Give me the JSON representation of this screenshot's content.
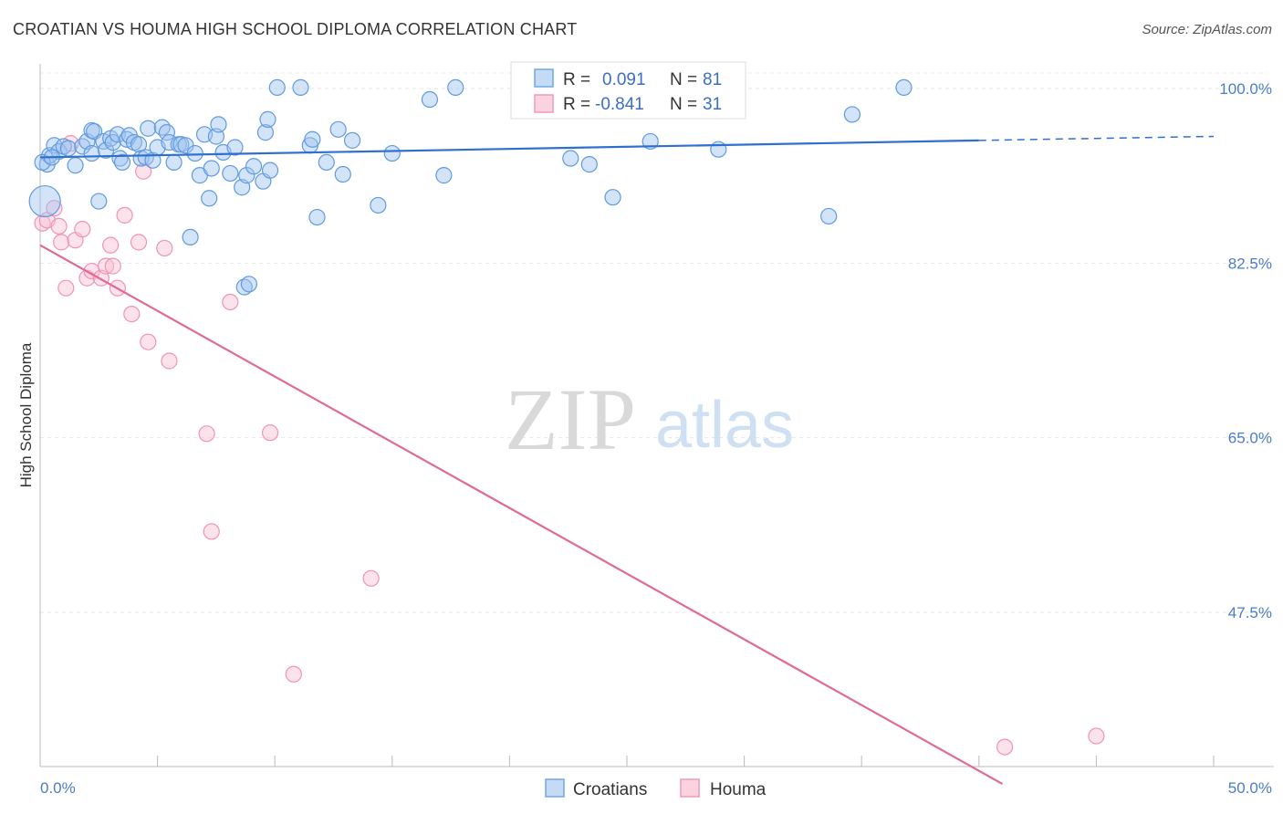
{
  "title": "CROATIAN VS HOUMA HIGH SCHOOL DIPLOMA CORRELATION CHART",
  "source": "Source: ZipAtlas.com",
  "watermark": {
    "zip": "ZIP",
    "atlas": "atlas"
  },
  "colors": {
    "croatians": "#6fa8e6",
    "houma": "#f09ab8",
    "croatians_line": "#2f6fcf",
    "houma_line": "#e06a97"
  },
  "legend": {
    "croatians": {
      "r_label": "R =",
      "r_value": "0.091",
      "n_label": "N =",
      "n_value": "81"
    },
    "houma": {
      "r_label": "R =",
      "r_value": "-0.841",
      "n_label": "N =",
      "n_value": "31"
    }
  },
  "bottom_legend": [
    "Croatians",
    "Houma"
  ],
  "chart_data": {
    "type": "scatter",
    "title": "CROATIAN VS HOUMA HIGH SCHOOL DIPLOMA CORRELATION CHART",
    "xlabel": "",
    "ylabel": "High School Diploma",
    "xlim": [
      0,
      50
    ],
    "ylim": [
      30,
      102
    ],
    "x_tick_labels": [
      "0.0%",
      "50.0%"
    ],
    "y_ticks": [
      47.5,
      65.0,
      82.5,
      100.0
    ],
    "y_tick_labels": [
      "47.5%",
      "65.0%",
      "82.5%",
      "100.0%"
    ],
    "grid": true,
    "legend_position": "top-center",
    "series": [
      {
        "name": "Croatians",
        "color": "#6fa8e6",
        "trend": {
          "x": [
            0,
            40,
            50
          ],
          "y": [
            93.1,
            94.8,
            95.2
          ]
        },
        "points": [
          [
            0.2,
            88.7
          ],
          [
            0.3,
            92.4
          ],
          [
            0.4,
            93.3
          ],
          [
            0.6,
            94.3
          ],
          [
            0.8,
            93.7
          ],
          [
            1.0,
            94.2
          ],
          [
            1.2,
            94.0
          ],
          [
            1.5,
            92.3
          ],
          [
            1.8,
            94.2
          ],
          [
            2.0,
            94.7
          ],
          [
            2.2,
            93.5
          ],
          [
            2.2,
            95.8
          ],
          [
            2.3,
            95.7
          ],
          [
            2.5,
            88.7
          ],
          [
            2.7,
            94.7
          ],
          [
            2.8,
            93.8
          ],
          [
            3.0,
            95.0
          ],
          [
            3.1,
            94.6
          ],
          [
            3.3,
            95.4
          ],
          [
            3.4,
            93.0
          ],
          [
            3.5,
            92.6
          ],
          [
            3.7,
            94.9
          ],
          [
            3.8,
            95.3
          ],
          [
            4.0,
            94.6
          ],
          [
            4.2,
            94.4
          ],
          [
            4.3,
            93.0
          ],
          [
            4.5,
            93.1
          ],
          [
            4.6,
            96.0
          ],
          [
            4.8,
            92.8
          ],
          [
            5.0,
            94.1
          ],
          [
            5.2,
            96.1
          ],
          [
            5.4,
            95.6
          ],
          [
            5.5,
            94.6
          ],
          [
            5.7,
            92.6
          ],
          [
            5.9,
            94.4
          ],
          [
            6.0,
            94.4
          ],
          [
            6.2,
            94.3
          ],
          [
            6.4,
            85.1
          ],
          [
            6.6,
            93.5
          ],
          [
            6.8,
            91.3
          ],
          [
            7.0,
            95.4
          ],
          [
            7.2,
            89.0
          ],
          [
            7.3,
            92.0
          ],
          [
            7.5,
            95.2
          ],
          [
            7.6,
            96.4
          ],
          [
            7.8,
            93.6
          ],
          [
            8.1,
            91.5
          ],
          [
            8.3,
            94.1
          ],
          [
            8.6,
            90.1
          ],
          [
            8.7,
            80.1
          ],
          [
            8.8,
            91.3
          ],
          [
            9.1,
            92.2
          ],
          [
            9.5,
            90.7
          ],
          [
            9.6,
            95.6
          ],
          [
            9.7,
            96.9
          ],
          [
            9.8,
            91.8
          ],
          [
            10.1,
            100.1
          ],
          [
            11.1,
            100.1
          ],
          [
            11.5,
            94.3
          ],
          [
            11.6,
            94.9
          ],
          [
            11.8,
            87.1
          ],
          [
            12.2,
            92.6
          ],
          [
            12.7,
            95.9
          ],
          [
            12.9,
            91.4
          ],
          [
            13.3,
            94.8
          ],
          [
            14.4,
            88.3
          ],
          [
            15.0,
            93.5
          ],
          [
            16.6,
            98.9
          ],
          [
            17.2,
            91.3
          ],
          [
            17.7,
            100.1
          ],
          [
            22.6,
            93.0
          ],
          [
            23.4,
            92.4
          ],
          [
            24.4,
            89.1
          ],
          [
            26.0,
            94.7
          ],
          [
            28.9,
            93.9
          ],
          [
            33.6,
            87.2
          ],
          [
            34.6,
            97.4
          ],
          [
            36.8,
            100.1
          ],
          [
            0.1,
            92.6
          ],
          [
            0.5,
            93.1
          ],
          [
            8.9,
            80.4
          ]
        ]
      },
      {
        "name": "Houma",
        "color": "#f09ab8",
        "trend": {
          "x": [
            0,
            41
          ],
          "y": [
            84.3,
            30.3
          ]
        },
        "points": [
          [
            0.1,
            86.5
          ],
          [
            0.3,
            86.8
          ],
          [
            0.6,
            88.0
          ],
          [
            0.8,
            86.2
          ],
          [
            0.9,
            84.6
          ],
          [
            1.1,
            80.0
          ],
          [
            1.3,
            94.5
          ],
          [
            1.5,
            84.8
          ],
          [
            1.8,
            85.9
          ],
          [
            2.0,
            81.0
          ],
          [
            2.2,
            81.7
          ],
          [
            2.6,
            81.0
          ],
          [
            2.8,
            82.2
          ],
          [
            3.0,
            84.3
          ],
          [
            3.1,
            82.2
          ],
          [
            3.3,
            80.0
          ],
          [
            3.6,
            87.3
          ],
          [
            3.9,
            77.4
          ],
          [
            4.2,
            84.6
          ],
          [
            4.4,
            91.7
          ],
          [
            4.6,
            74.6
          ],
          [
            5.3,
            84.0
          ],
          [
            5.5,
            72.7
          ],
          [
            7.1,
            65.4
          ],
          [
            7.3,
            55.6
          ],
          [
            8.1,
            78.6
          ],
          [
            9.8,
            65.5
          ],
          [
            10.8,
            41.3
          ],
          [
            14.1,
            50.9
          ],
          [
            41.1,
            34.0
          ],
          [
            45.0,
            35.1
          ]
        ]
      }
    ]
  }
}
